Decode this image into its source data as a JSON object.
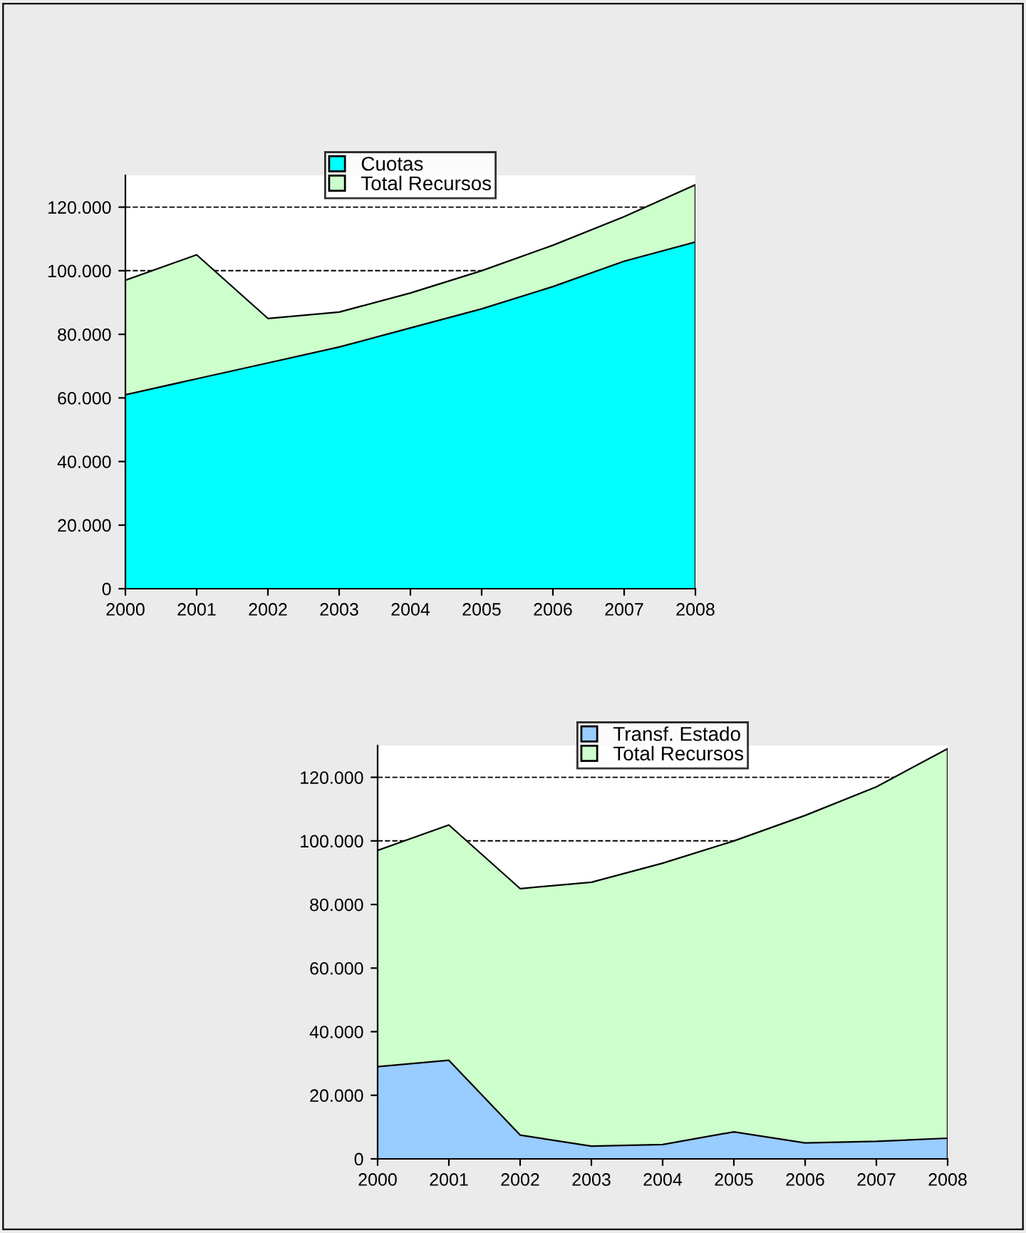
{
  "chart_data": [
    {
      "type": "area",
      "categories": [
        "2000",
        "2001",
        "2002",
        "2003",
        "2004",
        "2005",
        "2006",
        "2007",
        "2008"
      ],
      "series": [
        {
          "name": "Cuotas",
          "color": "#00ffff",
          "values": [
            61000,
            66000,
            71000,
            76000,
            82000,
            88000,
            95000,
            103000,
            109000
          ]
        },
        {
          "name": "Total Recursos",
          "color": "#ccffcc",
          "values": [
            97000,
            105000,
            85000,
            87000,
            93000,
            100000,
            108000,
            117000,
            127000
          ]
        }
      ],
      "ylim": [
        0,
        130000
      ],
      "yticks": [
        {
          "value": 0,
          "label": "0"
        },
        {
          "value": 20000,
          "label": "20.000"
        },
        {
          "value": 40000,
          "label": "40.000"
        },
        {
          "value": 60000,
          "label": "60.000"
        },
        {
          "value": 80000,
          "label": "80.000"
        },
        {
          "value": 100000,
          "label": "100.000"
        },
        {
          "value": 120000,
          "label": "120.000"
        }
      ],
      "grid": "y",
      "legend": "top"
    },
    {
      "type": "area",
      "categories": [
        "2000",
        "2001",
        "2002",
        "2003",
        "2004",
        "2005",
        "2006",
        "2007",
        "2008"
      ],
      "series": [
        {
          "name": "Transf. Estado",
          "color": "#99ccff",
          "values": [
            29000,
            31000,
            7500,
            4000,
            4500,
            8500,
            5000,
            5500,
            6500
          ]
        },
        {
          "name": "Total Recursos",
          "color": "#ccffcc",
          "values": [
            97000,
            105000,
            85000,
            87000,
            93000,
            100000,
            108000,
            117000,
            129000
          ]
        }
      ],
      "ylim": [
        0,
        130000
      ],
      "yticks": [
        {
          "value": 0,
          "label": "0"
        },
        {
          "value": 20000,
          "label": "20.000"
        },
        {
          "value": 40000,
          "label": "40.000"
        },
        {
          "value": 60000,
          "label": "60.000"
        },
        {
          "value": 80000,
          "label": "80.000"
        },
        {
          "value": 100000,
          "label": "100.000"
        },
        {
          "value": 120000,
          "label": "120.000"
        }
      ],
      "grid": "y",
      "legend": "top"
    }
  ]
}
